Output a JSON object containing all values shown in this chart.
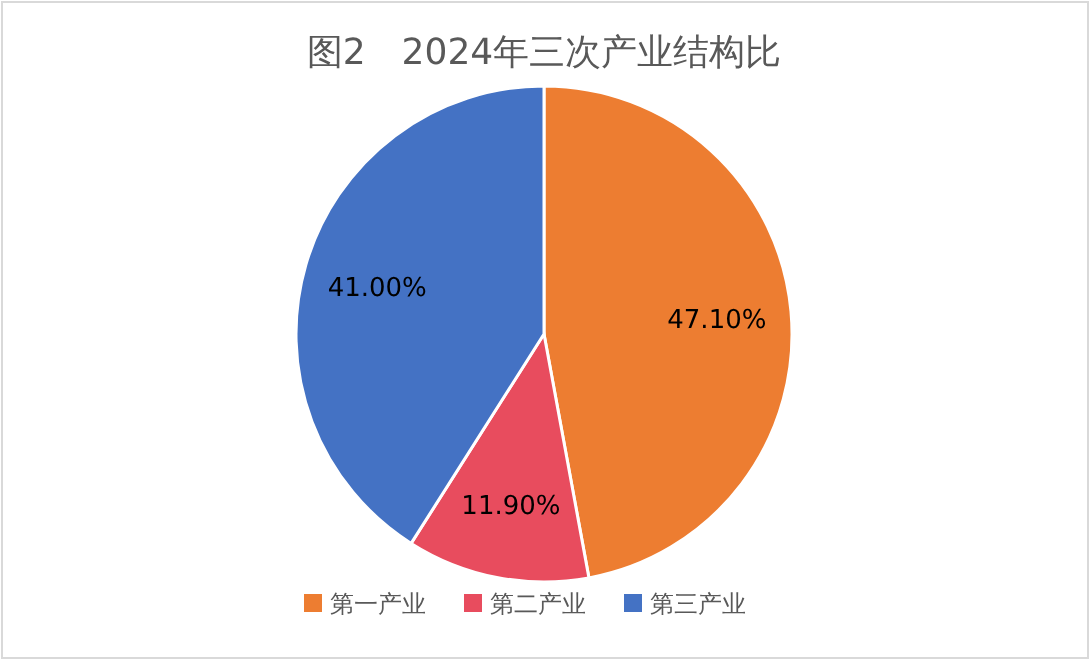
{
  "chart_data": {
    "type": "pie",
    "title": "图2　2024年三次产业结构比",
    "categories": [
      "第一产业",
      "第二产业",
      "第三产业"
    ],
    "values": [
      47.1,
      11.9,
      41.0
    ],
    "colors": [
      "#ed7d31",
      "#e84c5e",
      "#4472c4"
    ],
    "value_labels": [
      "47.10%",
      "11.90%",
      "41.00%"
    ],
    "legend": "bottom"
  }
}
